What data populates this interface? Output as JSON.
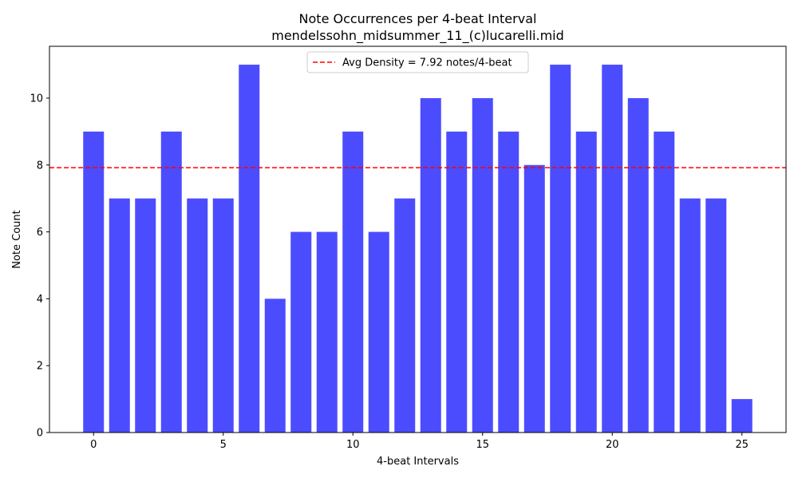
{
  "chart_data": {
    "type": "bar",
    "title": "Note Occurrences per 4-beat Interval",
    "subtitle": "mendelssohn_midsummer_11_(c)lucarelli.mid",
    "xlabel": "4-beat Intervals",
    "ylabel": "Note Count",
    "x": [
      0,
      1,
      2,
      3,
      4,
      5,
      6,
      7,
      8,
      9,
      10,
      11,
      12,
      13,
      14,
      15,
      16,
      17,
      18,
      19,
      20,
      21,
      22,
      23,
      24,
      25
    ],
    "values": [
      9,
      7,
      7,
      9,
      7,
      7,
      11,
      4,
      6,
      6,
      9,
      6,
      7,
      10,
      9,
      10,
      9,
      8,
      11,
      9,
      11,
      10,
      9,
      7,
      7,
      1
    ],
    "xlim": [
      -1.7,
      26.7
    ],
    "ylim": [
      0,
      11.55
    ],
    "xticks": [
      0,
      5,
      10,
      15,
      20,
      25
    ],
    "yticks": [
      0,
      2,
      4,
      6,
      8,
      10
    ],
    "bar_color": "#4c4cff",
    "reference_line": {
      "value": 7.92,
      "label": "Avg Density = 7.92 notes/4-beat",
      "color": "#ff0000",
      "style": "dashed"
    },
    "legend_position": "top-center",
    "grid": false
  }
}
